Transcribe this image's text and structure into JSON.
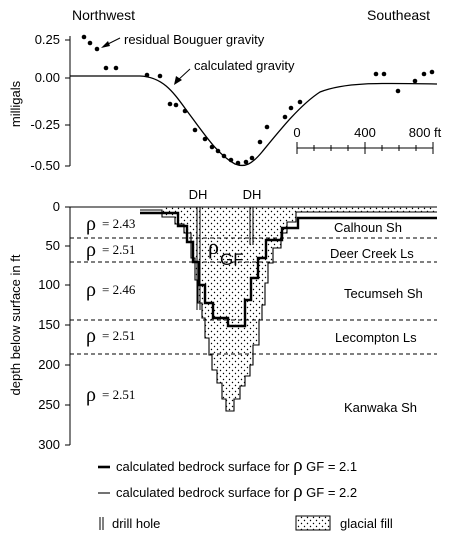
{
  "gravity_panel": {
    "label_left": "Northwest",
    "label_right": "Southeast",
    "ylabel": "milligals",
    "y_ticks": [
      "0.25",
      "0.00",
      "-0.25",
      "-0.50"
    ],
    "label_observed": "residual Bouguer gravity",
    "label_calculated": "calculated gravity",
    "scale_bar": {
      "labels": [
        "0",
        "400",
        "800 ft"
      ]
    }
  },
  "section_panel": {
    "ylabel": "depth below surface in ft",
    "y_ticks": [
      "0",
      "50",
      "100",
      "150",
      "200",
      "250",
      "300"
    ],
    "drill_hole_labels": [
      "DH",
      "DH"
    ],
    "fill_label": "ρ",
    "fill_label_sub": "GF",
    "rho_symbol": "ρ",
    "units": [
      {
        "name": "Calhoun Sh",
        "density": "= 2.43"
      },
      {
        "name": "Deer Creek Ls",
        "density": "= 2.51"
      },
      {
        "name": "Tecumseh Sh",
        "density": "= 2.46"
      },
      {
        "name": "Lecompton Ls",
        "density": "= 2.51"
      },
      {
        "name": "Kanwaka Sh",
        "density": "= 2.51"
      }
    ]
  },
  "legend": {
    "thick_line": {
      "prefix": "calculated bedrock surface for",
      "symbol": "ρ",
      "suffix": "GF = 2.1"
    },
    "thin_line": {
      "prefix": "calculated bedrock surface for",
      "symbol": "ρ",
      "suffix": "GF = 2.2"
    },
    "drill_hole": "drill hole",
    "glacial_fill": "glacial fill"
  }
}
